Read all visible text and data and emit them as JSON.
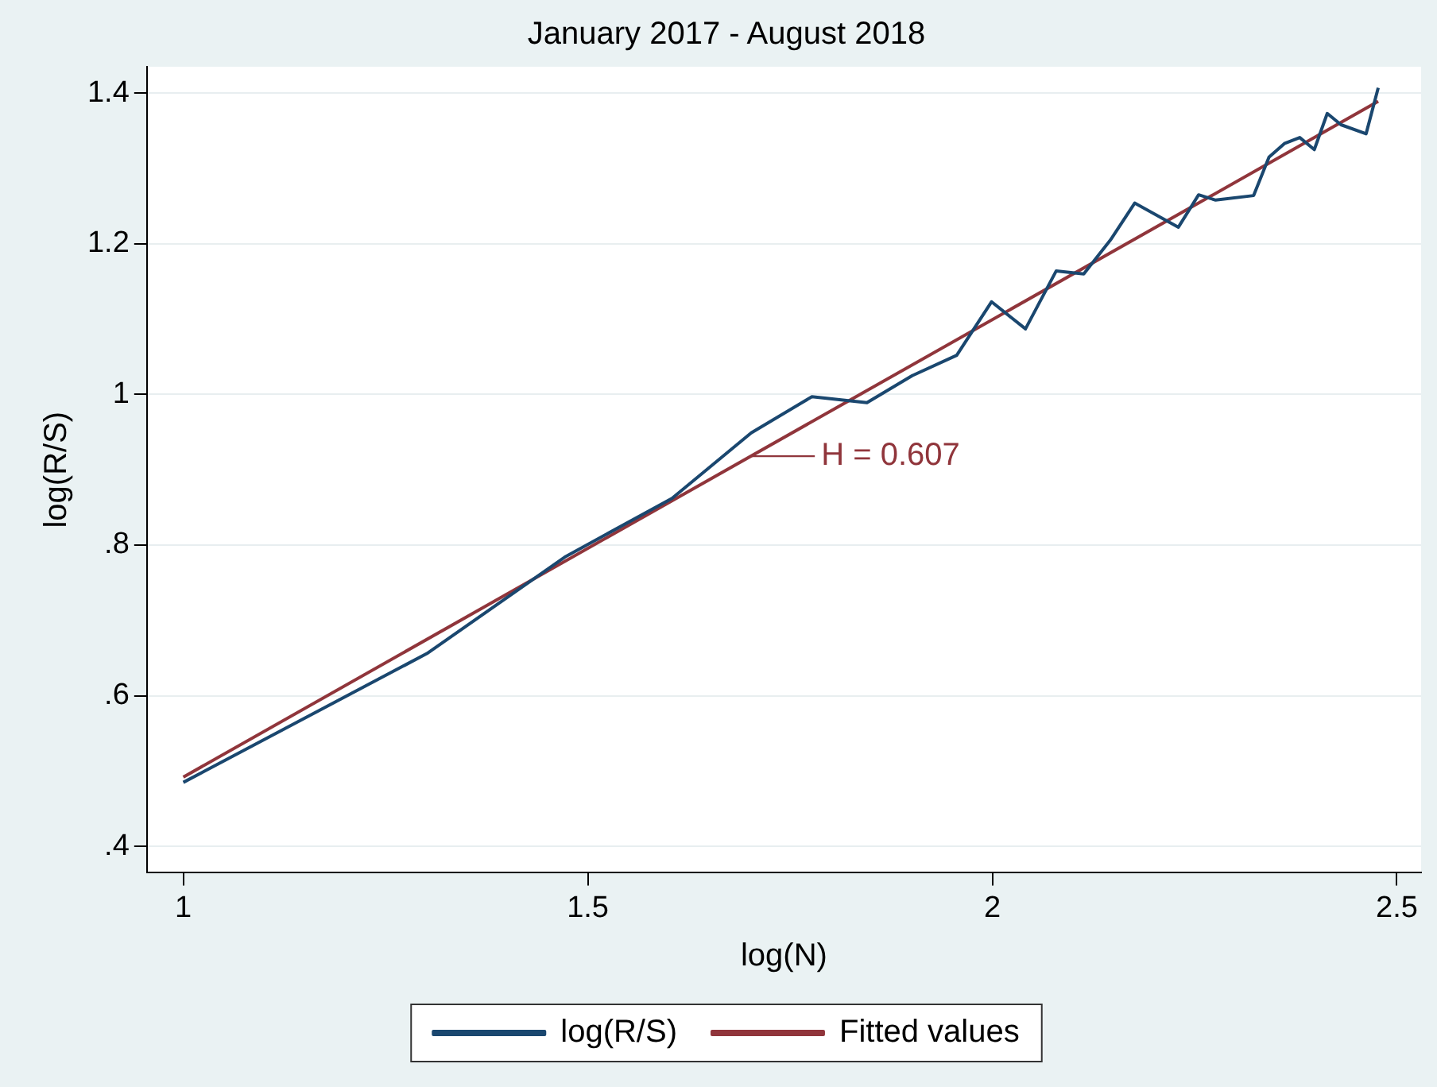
{
  "chart_data": {
    "type": "line",
    "title": "January 2017 - August 2018",
    "xlabel": "log(N)",
    "ylabel": "log(R/S)",
    "xlim": [
      0.955,
      2.53
    ],
    "xticks": [
      1,
      1.5,
      2,
      2.5
    ],
    "ylim": [
      0.365,
      1.435
    ],
    "yticks": [
      {
        "value": 0.4,
        "label": ".4"
      },
      {
        "value": 0.6,
        "label": ".6"
      },
      {
        "value": 0.8,
        "label": ".8"
      },
      1,
      1.2,
      1.4
    ],
    "grid": "y",
    "legend": "bottom",
    "marker": "none",
    "line_style": "solid",
    "series": [
      {
        "name": "log(R/S)",
        "color": "#1a476f",
        "x": [
          1.0,
          1.301,
          1.473,
          1.604,
          1.702,
          1.777,
          1.845,
          1.901,
          1.956,
          1.999,
          2.041,
          2.079,
          2.113,
          2.146,
          2.176,
          2.23,
          2.255,
          2.276,
          2.323,
          2.342,
          2.361,
          2.38,
          2.398,
          2.414,
          2.431,
          2.462,
          2.477
        ],
        "values": [
          0.485,
          0.656,
          0.785,
          0.862,
          0.949,
          0.997,
          0.989,
          1.025,
          1.052,
          1.123,
          1.087,
          1.164,
          1.16,
          1.205,
          1.254,
          1.222,
          1.265,
          1.258,
          1.264,
          1.315,
          1.333,
          1.341,
          1.325,
          1.373,
          1.358,
          1.346,
          1.407
        ]
      },
      {
        "name": "Fitted values",
        "color": "#90353b",
        "x": [
          1.0,
          2.477
        ],
        "values": [
          0.492,
          1.389
        ]
      }
    ],
    "annotations": [
      {
        "text": "H = 0.607",
        "x": 1.702,
        "y": 0.918
      }
    ]
  }
}
